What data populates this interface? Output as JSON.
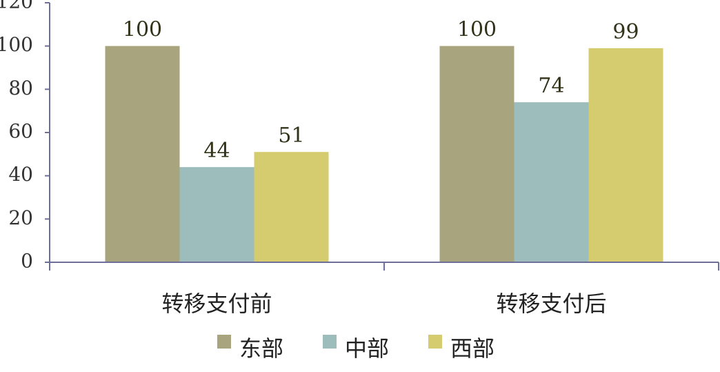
{
  "chart_data": {
    "type": "bar",
    "categories": [
      "转移支付前",
      "转移支付后"
    ],
    "series": [
      {
        "name": "东部",
        "color": "#a8a57e",
        "values": [
          100,
          100
        ]
      },
      {
        "name": "中部",
        "color": "#9dbdbd",
        "values": [
          44,
          74
        ]
      },
      {
        "name": "西部",
        "color": "#d4cc6e",
        "values": [
          51,
          99
        ]
      }
    ],
    "ylim": [
      0,
      120
    ],
    "yticks": [
      0,
      20,
      40,
      60,
      80,
      100,
      120
    ],
    "grid": false,
    "legend": "bottom"
  }
}
